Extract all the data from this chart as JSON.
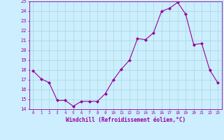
{
  "x": [
    0,
    1,
    2,
    3,
    4,
    5,
    6,
    7,
    8,
    9,
    10,
    11,
    12,
    13,
    14,
    15,
    16,
    17,
    18,
    19,
    20,
    21,
    22,
    23
  ],
  "y": [
    17.9,
    17.1,
    16.7,
    14.9,
    14.9,
    14.3,
    14.8,
    14.8,
    14.8,
    15.6,
    17.0,
    18.1,
    19.0,
    21.2,
    21.1,
    21.8,
    24.0,
    24.3,
    24.9,
    23.7,
    20.6,
    20.7,
    18.0,
    16.7
  ],
  "line_color": "#990099",
  "marker": "D",
  "marker_size": 2,
  "bg_color": "#cceeff",
  "grid_color": "#aadddd",
  "xlabel": "Windchill (Refroidissement éolien,°C)",
  "xlabel_color": "#990099",
  "tick_color": "#990099",
  "ylim": [
    14,
    25
  ],
  "xlim": [
    -0.5,
    23.5
  ],
  "yticks": [
    14,
    15,
    16,
    17,
    18,
    19,
    20,
    21,
    22,
    23,
    24,
    25
  ],
  "xticks": [
    0,
    1,
    2,
    3,
    4,
    5,
    6,
    7,
    8,
    9,
    10,
    11,
    12,
    13,
    14,
    15,
    16,
    17,
    18,
    19,
    20,
    21,
    22,
    23
  ],
  "xtick_labels": [
    "0",
    "1",
    "2",
    "3",
    "4",
    "5",
    "6",
    "7",
    "8",
    "9",
    "10",
    "11",
    "12",
    "13",
    "14",
    "15",
    "16",
    "17",
    "18",
    "19",
    "20",
    "21",
    "22",
    "23"
  ]
}
